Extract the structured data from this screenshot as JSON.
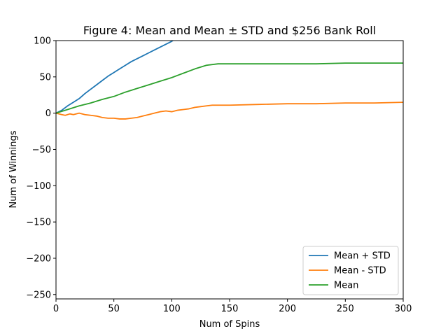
{
  "chart_data": {
    "type": "line",
    "title": "Figure 4: Mean and Mean ± STD and $256 Bank Roll",
    "xlabel": "Num of Spins",
    "ylabel": "Num of Winnings",
    "xlim": [
      0,
      300
    ],
    "ylim": [
      -256,
      100
    ],
    "xticks": [
      0,
      50,
      100,
      150,
      200,
      250,
      300
    ],
    "yticks": [
      -250,
      -200,
      -150,
      -100,
      -50,
      0,
      50,
      100
    ],
    "xtick_labels": [
      "0",
      "50",
      "100",
      "150",
      "200",
      "250",
      "300"
    ],
    "ytick_labels": [
      "−250",
      "−200",
      "−150",
      "−100",
      "−50",
      "0",
      "50",
      "100"
    ],
    "grid": false,
    "legend_position": "lower-right",
    "series": [
      {
        "name": "Mean + STD",
        "color": "#1f77b4",
        "x": [
          0,
          5,
          10,
          15,
          20,
          25,
          30,
          35,
          40,
          45,
          50,
          55,
          60,
          65,
          70,
          75,
          80,
          85,
          90,
          95,
          100,
          101
        ],
        "y": [
          0,
          4,
          10,
          15,
          20,
          27,
          33,
          39,
          45,
          51,
          56,
          61,
          66,
          71,
          75,
          79,
          83,
          87,
          91,
          95,
          99,
          100
        ]
      },
      {
        "name": "Mean - STD",
        "color": "#ff7f0e",
        "x": [
          0,
          5,
          8,
          12,
          15,
          20,
          25,
          30,
          35,
          40,
          45,
          50,
          55,
          60,
          65,
          70,
          75,
          80,
          85,
          90,
          95,
          100,
          105,
          110,
          115,
          120,
          125,
          130,
          135,
          140,
          150,
          175,
          200,
          225,
          250,
          275,
          300
        ],
        "y": [
          0,
          -2,
          -3,
          -1,
          -2,
          0,
          -2,
          -3,
          -4,
          -6,
          -7,
          -7,
          -8,
          -8,
          -7,
          -6,
          -4,
          -2,
          0,
          2,
          3,
          2,
          4,
          5,
          6,
          8,
          9,
          10,
          11,
          11,
          11,
          12,
          13,
          13,
          14,
          14,
          15
        ]
      },
      {
        "name": "Mean",
        "color": "#2ca02c",
        "x": [
          0,
          10,
          20,
          30,
          40,
          50,
          60,
          70,
          80,
          90,
          100,
          110,
          120,
          130,
          140,
          150,
          175,
          200,
          225,
          250,
          275,
          300
        ],
        "y": [
          0,
          5,
          10,
          14,
          19,
          23,
          29,
          34,
          39,
          44,
          49,
          55,
          61,
          66,
          68,
          68,
          68,
          68,
          68,
          69,
          69,
          69
        ]
      }
    ]
  }
}
